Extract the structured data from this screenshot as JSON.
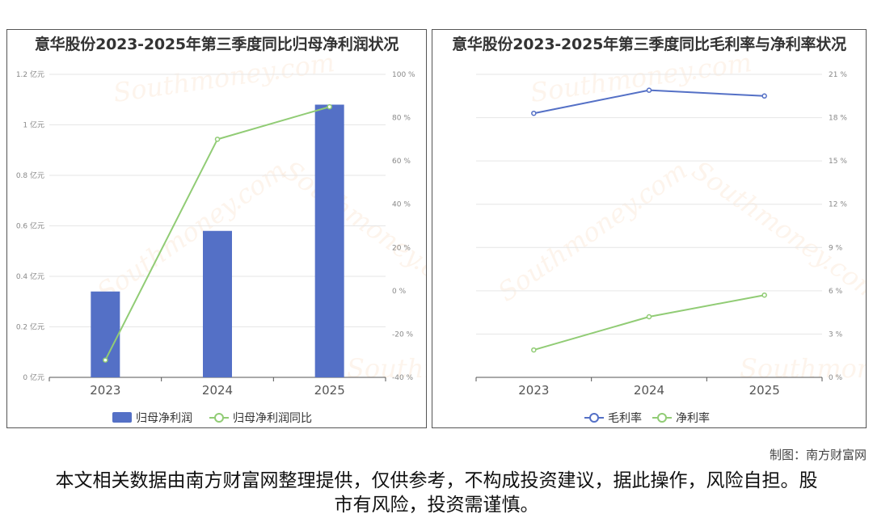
{
  "credit": "制图：南方财富网",
  "disclaimer": "本文相关数据由南方财富网整理提供，仅供参考，不构成投资建议，据此操作，风险自担。股市有风险，投资需谨慎。",
  "watermark_text": "南方财富网",
  "watermark_url": "Southmoney.com",
  "chart_data": [
    {
      "type": "bar",
      "title": "意华股份2023-2025年第三季度同比归母净利润状况",
      "categories": [
        "2023",
        "2024",
        "2025"
      ],
      "series": [
        {
          "name": "归母净利润",
          "type": "bar",
          "axis": "left",
          "values": [
            0.34,
            0.58,
            1.08
          ],
          "color": "#5470c6"
        },
        {
          "name": "归母净利润同比",
          "type": "line",
          "axis": "right",
          "values": [
            -32,
            70,
            85
          ],
          "color": "#91cc75"
        }
      ],
      "y_left": {
        "min": 0,
        "max": 1.2,
        "ticks": [
          "0 亿元",
          "0.2 亿元",
          "0.4 亿元",
          "0.6 亿元",
          "0.8 亿元",
          "1 亿元",
          "1.2 亿元"
        ]
      },
      "y_right": {
        "min": -40,
        "max": 100,
        "ticks": [
          "-40 %",
          "-20 %",
          "0 %",
          "20 %",
          "40 %",
          "60 %",
          "80 %",
          "100 %"
        ]
      },
      "legend": "bottom-center",
      "grid": true
    },
    {
      "type": "line",
      "title": "意华股份2023-2025年第三季度同比毛利率与净利率状况",
      "categories": [
        "2023",
        "2024",
        "2025"
      ],
      "series": [
        {
          "name": "毛利率",
          "values": [
            18.3,
            19.9,
            19.5
          ],
          "color": "#5470c6"
        },
        {
          "name": "净利率",
          "values": [
            1.9,
            4.2,
            5.7
          ],
          "color": "#91cc75"
        }
      ],
      "y_right": {
        "min": 0,
        "max": 21,
        "ticks": [
          "0 %",
          "3 %",
          "6 %",
          "9 %",
          "12 %",
          "15 %",
          "18 %",
          "21 %"
        ]
      },
      "legend": "bottom-center",
      "grid": true
    }
  ]
}
